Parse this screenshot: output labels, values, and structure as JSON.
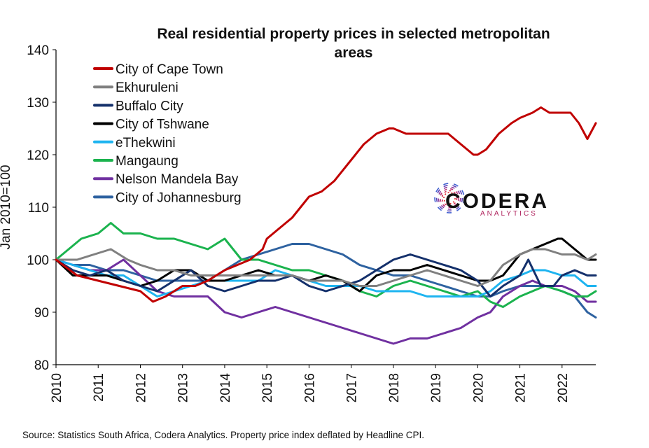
{
  "chart_data": {
    "type": "line",
    "title": "Real residential property prices in selected metropolitan areas",
    "title_lines": [
      "Real residential property prices in selected metropolitan",
      "areas"
    ],
    "xlabel": "",
    "ylabel": "Jan 2010=100",
    "xlim": [
      2010,
      2022.8
    ],
    "ylim": [
      80,
      140
    ],
    "x_ticks": [
      "2010",
      "2011",
      "2012",
      "2013",
      "2014",
      "2015",
      "2016",
      "2017",
      "2018",
      "2019",
      "2020",
      "2021",
      "2022"
    ],
    "y_ticks": [
      "80",
      "90",
      "100",
      "110",
      "120",
      "130",
      "140"
    ],
    "grid": false,
    "legend_position": "top-left",
    "series": [
      {
        "name": "City of Cape Town",
        "color": "#c00000",
        "x": [
          2010,
          2010.5,
          2011,
          2011.5,
          2012,
          2012.3,
          2012.6,
          2013,
          2013.3,
          2013.6,
          2014,
          2014.3,
          2014.6,
          2014.9,
          2015,
          2015.3,
          2015.6,
          2016,
          2016.3,
          2016.6,
          2017,
          2017.3,
          2017.6,
          2017.9,
          2018,
          2018.3,
          2018.6,
          2019,
          2019.3,
          2019.6,
          2019.9,
          2020,
          2020.2,
          2020.5,
          2020.8,
          2021,
          2021.3,
          2021.5,
          2021.7,
          2022,
          2022.2,
          2022.4,
          2022.6,
          2022.8
        ],
        "y": [
          100,
          97,
          96,
          95,
          94,
          92,
          93,
          95,
          95,
          96,
          98,
          99,
          100,
          102,
          104,
          106,
          108,
          112,
          113,
          115,
          119,
          122,
          124,
          125,
          125,
          124,
          124,
          124,
          124,
          122,
          120,
          120,
          121,
          124,
          126,
          127,
          128,
          129,
          128,
          128,
          128,
          126,
          123,
          126
        ]
      },
      {
        "name": "Ekhuruleni",
        "color": "#808080",
        "x": [
          2010,
          2010.5,
          2010.9,
          2011.3,
          2011.7,
          2012,
          2012.4,
          2012.8,
          2013.2,
          2013.6,
          2014,
          2014.4,
          2014.8,
          2015.2,
          2015.6,
          2016,
          2016.4,
          2016.8,
          2017.2,
          2017.6,
          2018,
          2018.4,
          2018.8,
          2019.2,
          2019.6,
          2020,
          2020.3,
          2020.6,
          2021,
          2021.3,
          2021.6,
          2022,
          2022.3,
          2022.6,
          2022.8
        ],
        "y": [
          100,
          100,
          101,
          102,
          100,
          99,
          98,
          98,
          97,
          97,
          97,
          97,
          97,
          97,
          97,
          96,
          96,
          96,
          95,
          95,
          96,
          97,
          98,
          97,
          96,
          95,
          96,
          99,
          101,
          102,
          102,
          101,
          101,
          100,
          101
        ]
      },
      {
        "name": "Buffalo City",
        "color": "#14306b",
        "x": [
          2010,
          2010.4,
          2010.8,
          2011.2,
          2011.6,
          2012,
          2012.4,
          2012.8,
          2013.2,
          2013.6,
          2014,
          2014.4,
          2014.8,
          2015.2,
          2015.6,
          2016,
          2016.4,
          2016.8,
          2017.2,
          2017.6,
          2018,
          2018.4,
          2018.8,
          2019.2,
          2019.6,
          2020,
          2020.3,
          2020.6,
          2021,
          2021.2,
          2021.5,
          2021.8,
          2022,
          2022.3,
          2022.6,
          2022.8
        ],
        "y": [
          100,
          98,
          97,
          98,
          96,
          95,
          94,
          96,
          98,
          95,
          94,
          95,
          96,
          96,
          97,
          95,
          94,
          95,
          96,
          98,
          100,
          101,
          100,
          99,
          98,
          96,
          93,
          95,
          97,
          100,
          95,
          95,
          97,
          98,
          97,
          97
        ]
      },
      {
        "name": "City of Tshwane",
        "color": "#000000",
        "x": [
          2010,
          2010.4,
          2010.8,
          2011.2,
          2011.6,
          2012,
          2012.4,
          2012.8,
          2013.2,
          2013.6,
          2014,
          2014.4,
          2014.8,
          2015.2,
          2015.6,
          2016,
          2016.4,
          2016.8,
          2017.2,
          2017.6,
          2018,
          2018.4,
          2018.8,
          2019.2,
          2019.6,
          2020,
          2020.3,
          2020.6,
          2021,
          2021.3,
          2021.6,
          2021.9,
          2022,
          2022.3,
          2022.6,
          2022.8
        ],
        "y": [
          100,
          97,
          97,
          97,
          96,
          95,
          96,
          98,
          98,
          96,
          96,
          97,
          98,
          97,
          97,
          96,
          97,
          96,
          94,
          97,
          98,
          98,
          99,
          98,
          97,
          96,
          96,
          97,
          101,
          102,
          103,
          104,
          104,
          102,
          100,
          100
        ]
      },
      {
        "name": "eThekwini",
        "color": "#1eb4f0",
        "x": [
          2010,
          2010.4,
          2010.8,
          2011.2,
          2011.6,
          2012,
          2012.4,
          2012.8,
          2013.2,
          2013.6,
          2014,
          2014.4,
          2014.8,
          2015.2,
          2015.6,
          2016,
          2016.4,
          2016.8,
          2017.2,
          2017.6,
          2018,
          2018.4,
          2018.8,
          2019.2,
          2019.6,
          2020,
          2020.3,
          2020.6,
          2021,
          2021.3,
          2021.6,
          2022,
          2022.3,
          2022.6,
          2022.8
        ],
        "y": [
          100,
          99,
          98,
          97,
          97,
          95,
          93,
          94,
          95,
          96,
          96,
          96,
          96,
          98,
          97,
          96,
          95,
          95,
          95,
          94,
          94,
          94,
          93,
          93,
          93,
          93,
          94,
          96,
          97,
          98,
          98,
          97,
          97,
          95,
          95
        ]
      },
      {
        "name": "Mangaung",
        "color": "#1bb34e",
        "x": [
          2010,
          2010.3,
          2010.6,
          2011,
          2011.3,
          2011.6,
          2012,
          2012.4,
          2012.8,
          2013.2,
          2013.6,
          2014,
          2014.4,
          2014.8,
          2015.2,
          2015.6,
          2016,
          2016.4,
          2016.8,
          2017.2,
          2017.6,
          2018,
          2018.4,
          2018.8,
          2019.2,
          2019.6,
          2020,
          2020.3,
          2020.6,
          2021,
          2021.3,
          2021.6,
          2022,
          2022.3,
          2022.6,
          2022.8
        ],
        "y": [
          100,
          102,
          104,
          105,
          107,
          105,
          105,
          104,
          104,
          103,
          102,
          104,
          100,
          100,
          99,
          98,
          98,
          97,
          96,
          94,
          93,
          95,
          96,
          95,
          94,
          93,
          94,
          92,
          91,
          93,
          94,
          95,
          94,
          93,
          93,
          94
        ]
      },
      {
        "name": "Nelson Mandela Bay",
        "color": "#7030a0",
        "x": [
          2010,
          2010.4,
          2010.8,
          2011.2,
          2011.6,
          2012,
          2012.4,
          2012.8,
          2013.2,
          2013.6,
          2014,
          2014.4,
          2014.8,
          2015.2,
          2015.6,
          2016,
          2016.4,
          2016.8,
          2017.2,
          2017.6,
          2018,
          2018.4,
          2018.8,
          2019.2,
          2019.6,
          2020,
          2020.3,
          2020.6,
          2021,
          2021.3,
          2021.6,
          2022,
          2022.3,
          2022.6,
          2022.8
        ],
        "y": [
          100,
          99,
          98,
          98,
          100,
          97,
          94,
          93,
          93,
          93,
          90,
          89,
          90,
          91,
          90,
          89,
          88,
          87,
          86,
          85,
          84,
          85,
          85,
          86,
          87,
          89,
          90,
          93,
          95,
          96,
          95,
          95,
          94,
          92,
          92
        ]
      },
      {
        "name": "City of Johannesburg",
        "color": "#2e62a0",
        "x": [
          2010,
          2010.4,
          2010.8,
          2011.2,
          2011.6,
          2012,
          2012.4,
          2012.8,
          2013.2,
          2013.6,
          2014,
          2014.4,
          2014.8,
          2015.2,
          2015.6,
          2016,
          2016.4,
          2016.8,
          2017.2,
          2017.6,
          2018,
          2018.4,
          2018.8,
          2019.2,
          2019.6,
          2020,
          2020.3,
          2020.6,
          2021,
          2021.3,
          2021.6,
          2022,
          2022.3,
          2022.6,
          2022.8
        ],
        "y": [
          100,
          99,
          99,
          98,
          98,
          97,
          96,
          96,
          96,
          96,
          98,
          100,
          101,
          102,
          103,
          103,
          102,
          101,
          99,
          98,
          97,
          97,
          96,
          95,
          94,
          93,
          93,
          94,
          95,
          95,
          95,
          94,
          93,
          90,
          89
        ]
      }
    ]
  },
  "logo": {
    "name": "CODERA",
    "tagline": "ANALYTICS"
  },
  "source": "Source: Statistics South Africa, Codera Analytics. Property price index deflated by Headline CPI."
}
